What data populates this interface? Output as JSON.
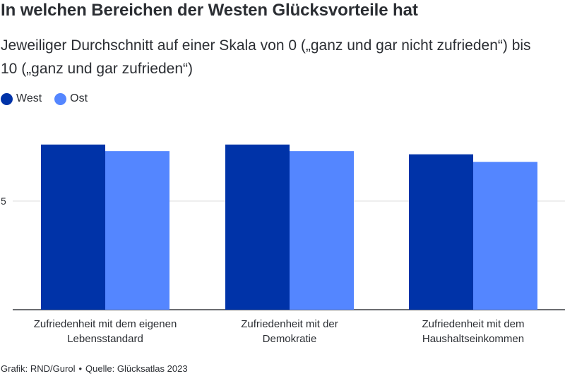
{
  "header": {
    "title": "In welchen Bereichen der Westen Glücksvorteile hat",
    "subtitle": "Jeweiliger Durchschnitt auf einer Skala von 0 („ganz und gar nicht zufrieden“) bis 10 („ganz und gar zufrieden“)"
  },
  "legend": [
    {
      "label": "West",
      "color": "#0033a8"
    },
    {
      "label": "Ost",
      "color": "#5486ff"
    }
  ],
  "chart_data": {
    "type": "bar",
    "title": "In welchen Bereichen der Westen Glücksvorteile hat",
    "subtitle": "Jeweiliger Durchschnitt auf einer Skala von 0 („ganz und gar nicht zufrieden“) bis 10 („ganz und gar zufrieden“)",
    "categories": [
      [
        "Zufriedenheit mit dem eigenen",
        "Lebensstandard"
      ],
      [
        "Zufriedenheit mit der",
        "Demokratie"
      ],
      [
        "Zufriedenheit mit dem",
        "Haushaltseinkommen"
      ]
    ],
    "series": [
      {
        "name": "West",
        "color": "#0033a8",
        "values": [
          7.6,
          7.6,
          7.15
        ]
      },
      {
        "name": "Ost",
        "color": "#5486ff",
        "values": [
          7.3,
          7.3,
          6.8
        ]
      }
    ],
    "yticks": [
      5
    ],
    "ylim": [
      0,
      10
    ],
    "grid": true,
    "legend_position": "top-left",
    "xlabel": "",
    "ylabel": ""
  },
  "footer": {
    "credit": "Grafik: RND/Gurol",
    "separator": "•",
    "source": "Quelle: Glücksatlas 2023"
  }
}
